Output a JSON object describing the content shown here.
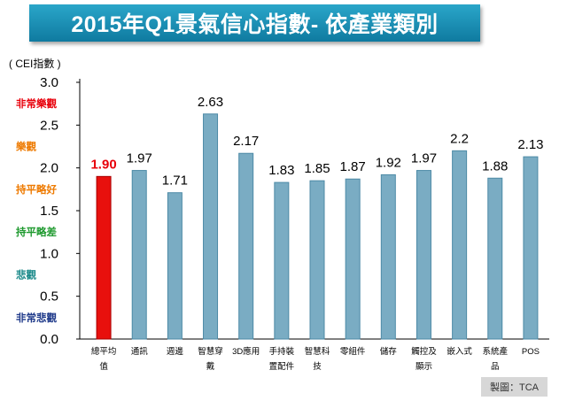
{
  "title": "2015年Q1景氣信心指數- 依產業類別",
  "unit_label": "( CEI指數 )",
  "credit": "製圖：TCA",
  "bands": [
    {
      "label": "非常樂觀",
      "value": 2.75,
      "color": "#e8000b"
    },
    {
      "label": "樂觀",
      "value": 2.25,
      "color": "#ee7a00"
    },
    {
      "label": "持平略好",
      "value": 1.75,
      "color": "#ee7a00"
    },
    {
      "label": "持平略差",
      "value": 1.25,
      "color": "#1f9a2f"
    },
    {
      "label": "悲觀",
      "value": 0.75,
      "color": "#1b8a8a"
    },
    {
      "label": "非常悲觀",
      "value": 0.25,
      "color": "#1f3a8a"
    }
  ],
  "chart_data": {
    "type": "bar",
    "title": "2015年Q1景氣信心指數- 依產業類別",
    "ylabel": "( CEI指數 )",
    "ylim": [
      0,
      3.0
    ],
    "yticks": [
      "0.0",
      "0.5",
      "1.0",
      "1.5",
      "2.0",
      "2.5",
      "3.0"
    ],
    "categories": [
      [
        "總平均",
        "值"
      ],
      [
        "通訊"
      ],
      [
        "週邊"
      ],
      [
        "智慧穿",
        "戴"
      ],
      [
        "3D應用"
      ],
      [
        "手持裝",
        "置配件"
      ],
      [
        "智慧科",
        "技"
      ],
      [
        "零組件"
      ],
      [
        "儲存"
      ],
      [
        "觸控及",
        "顯示"
      ],
      [
        "嵌入式"
      ],
      [
        "系統產",
        "品"
      ],
      [
        "POS"
      ]
    ],
    "values": [
      1.9,
      1.97,
      1.71,
      2.63,
      2.17,
      1.83,
      1.85,
      1.87,
      1.92,
      1.97,
      2.2,
      1.88,
      2.13
    ],
    "value_labels": [
      "1.90",
      "1.97",
      "1.71",
      "2.63",
      "2.17",
      "1.83",
      "1.85",
      "1.87",
      "1.92",
      "1.97",
      "2.2",
      "1.88",
      "2.13"
    ],
    "highlight_index": 0,
    "colors": {
      "bar": "#7aacc3",
      "bar_stroke": "#4d8aa6",
      "highlight": "#e8100d",
      "highlight_stroke": "#a80000"
    },
    "grid": false
  }
}
